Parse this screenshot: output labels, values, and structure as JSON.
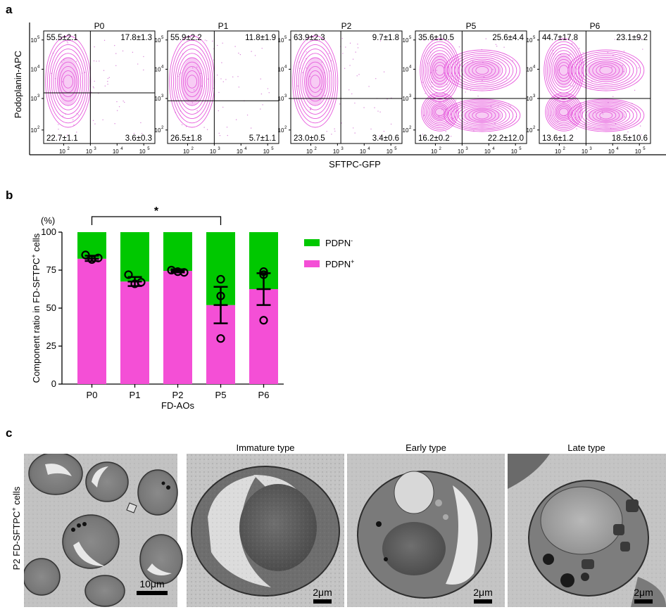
{
  "panel_a": {
    "letter": "a",
    "y_axis_label": "Podoplanin-APC",
    "x_axis_label": "SFTPC-GFP",
    "tick_labels": [
      "10",
      "2",
      "10",
      "3",
      "10",
      "4",
      "10",
      "5"
    ],
    "plots": [
      {
        "title": "P0",
        "ul": "55.5±2.1",
        "ur": "17.8±1.3",
        "ll": "22.7±1.1",
        "lr": "3.6±0.3",
        "gate_x": 0.42,
        "gate_y": 0.55,
        "pattern": "left"
      },
      {
        "title": "P1",
        "ul": "55.9±2.2",
        "ur": "11.8±1.9",
        "ll": "26.5±1.8",
        "lr": "5.7±1.1",
        "gate_x": 0.42,
        "gate_y": 0.62,
        "pattern": "left"
      },
      {
        "title": "P2",
        "ul": "63.9±2.3",
        "ur": "9.7±1.8",
        "ll": "23.0±0.5",
        "lr": "3.4±0.6",
        "gate_x": 0.45,
        "gate_y": 0.6,
        "pattern": "left"
      },
      {
        "title": "P5",
        "ul": "35.6±10.5",
        "ur": "25.6±4.4",
        "ll": "16.2±0.2",
        "lr": "22.2±12.0",
        "gate_x": 0.42,
        "gate_y": 0.6,
        "pattern": "spread"
      },
      {
        "title": "P6",
        "ul": "44.7±17.8",
        "ur": "23.1±9.2",
        "ll": "13.6±1.2",
        "lr": "18.5±10.6",
        "gate_x": 0.42,
        "gate_y": 0.6,
        "pattern": "spread"
      }
    ]
  },
  "panel_b": {
    "letter": "b",
    "significance": "*",
    "chart_data": {
      "type": "bar",
      "title": "",
      "xlabel": "FD-AOs",
      "ylabel": "Component ratio in FD-SFTPC⁺ cells",
      "ylabel_parts": [
        "Component ratio in FD-SFTPC",
        "+",
        " cells"
      ],
      "y_unit": "(%)",
      "ylim": [
        0,
        100
      ],
      "yticks": [
        0,
        25,
        50,
        75,
        100
      ],
      "categories": [
        "P0",
        "P1",
        "P2",
        "P5",
        "P6"
      ],
      "series": [
        {
          "name": "PDPN⁺",
          "name_base": "PDPN",
          "name_sup": "+",
          "color": "#f44fd6",
          "values": [
            82.5,
            67.5,
            74.5,
            52,
            62.5
          ]
        },
        {
          "name": "PDPN⁻",
          "name_base": "PDPN",
          "name_sup": "-",
          "color": "#00c800",
          "values": [
            17.5,
            32.5,
            25.5,
            48,
            37.5
          ]
        }
      ],
      "error_bars": [
        [
          81,
          84.5
        ],
        [
          64.5,
          70.5
        ],
        [
          73.5,
          75.5
        ],
        [
          40,
          64
        ],
        [
          52,
          73
        ]
      ],
      "points": [
        [
          85,
          82,
          83
        ],
        [
          72,
          66,
          67
        ],
        [
          75,
          74,
          73.5
        ],
        [
          69,
          58,
          30
        ],
        [
          74,
          72,
          42
        ]
      ],
      "sig_pair": [
        "P0",
        "P5"
      ]
    }
  },
  "panel_c": {
    "letter": "c",
    "y_label_parts": [
      "P2 FD-SFTPC",
      "+",
      " cells"
    ],
    "images": [
      {
        "title": "",
        "scale": "10μm"
      },
      {
        "title": "Immature type",
        "scale": "2μm"
      },
      {
        "title": "Early type",
        "scale": "2μm"
      },
      {
        "title": "Late type",
        "scale": "2μm"
      }
    ]
  }
}
